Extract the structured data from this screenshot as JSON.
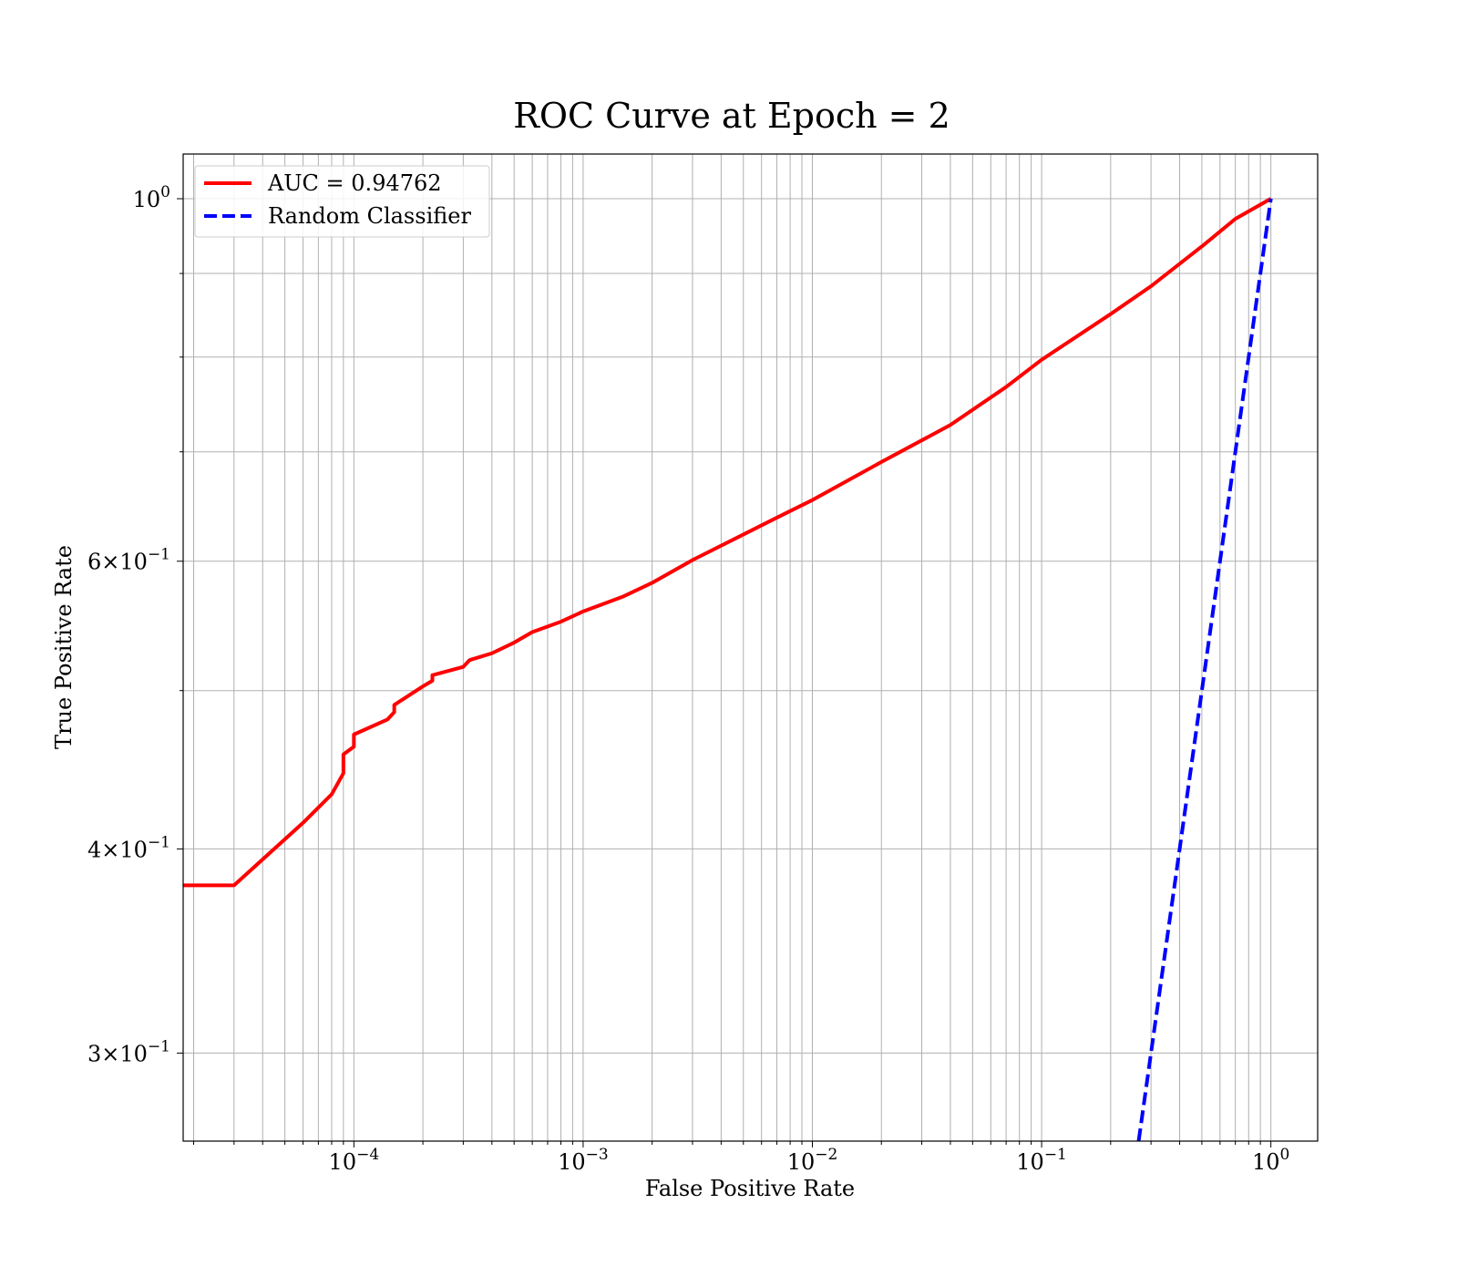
{
  "chart_data": {
    "type": "line",
    "title": "ROC Curve at Epoch = 2",
    "xlabel": "False Positive Rate",
    "ylabel": "True Positive Rate",
    "xscale": "log",
    "yscale": "log",
    "xlim": [
      1.8e-05,
      1.6
    ],
    "ylim": [
      0.265,
      1.065
    ],
    "grid": true,
    "legend_position": "top-left",
    "x_ticks": [
      {
        "value": 0.0001,
        "base": "10",
        "exp": "−4"
      },
      {
        "value": 0.001,
        "base": "10",
        "exp": "−3"
      },
      {
        "value": 0.01,
        "base": "10",
        "exp": "−2"
      },
      {
        "value": 0.1,
        "base": "10",
        "exp": "−1"
      },
      {
        "value": 1,
        "base": "10",
        "exp": "0"
      }
    ],
    "y_ticks": [
      {
        "value": 1.0,
        "mant": "",
        "base": "10",
        "exp": "0"
      },
      {
        "value": 0.6,
        "mant": "6×",
        "base": "10",
        "exp": "−1"
      },
      {
        "value": 0.4,
        "mant": "4×",
        "base": "10",
        "exp": "−1"
      },
      {
        "value": 0.3,
        "mant": "3×",
        "base": "10",
        "exp": "−1"
      }
    ],
    "series": [
      {
        "name": "AUC = 0.94762",
        "color": "#ff0000",
        "style": "solid",
        "points": [
          [
            1.8e-05,
            0.38
          ],
          [
            3e-05,
            0.38
          ],
          [
            6e-05,
            0.415
          ],
          [
            8e-05,
            0.432
          ],
          [
            9e-05,
            0.445
          ],
          [
            9e-05,
            0.457
          ],
          [
            0.0001,
            0.462
          ],
          [
            0.0001,
            0.47
          ],
          [
            0.00014,
            0.48
          ],
          [
            0.00015,
            0.485
          ],
          [
            0.00015,
            0.49
          ],
          [
            0.0002,
            0.503
          ],
          [
            0.00022,
            0.507
          ],
          [
            0.00022,
            0.511
          ],
          [
            0.0003,
            0.517
          ],
          [
            0.00032,
            0.522
          ],
          [
            0.0004,
            0.527
          ],
          [
            0.0005,
            0.535
          ],
          [
            0.0006,
            0.543
          ],
          [
            0.0008,
            0.551
          ],
          [
            0.001,
            0.559
          ],
          [
            0.0015,
            0.571
          ],
          [
            0.002,
            0.582
          ],
          [
            0.003,
            0.601
          ],
          [
            0.005,
            0.623
          ],
          [
            0.007,
            0.638
          ],
          [
            0.01,
            0.654
          ],
          [
            0.02,
            0.69
          ],
          [
            0.04,
            0.727
          ],
          [
            0.07,
            0.767
          ],
          [
            0.1,
            0.797
          ],
          [
            0.2,
            0.85
          ],
          [
            0.3,
            0.884
          ],
          [
            0.5,
            0.935
          ],
          [
            0.7,
            0.972
          ],
          [
            1.0,
            1.0
          ]
        ]
      },
      {
        "name": "Random Classifier",
        "color": "#0000ff",
        "style": "dashed",
        "points": [
          [
            0.265,
            0.265
          ],
          [
            1.0,
            1.0
          ]
        ]
      }
    ]
  }
}
